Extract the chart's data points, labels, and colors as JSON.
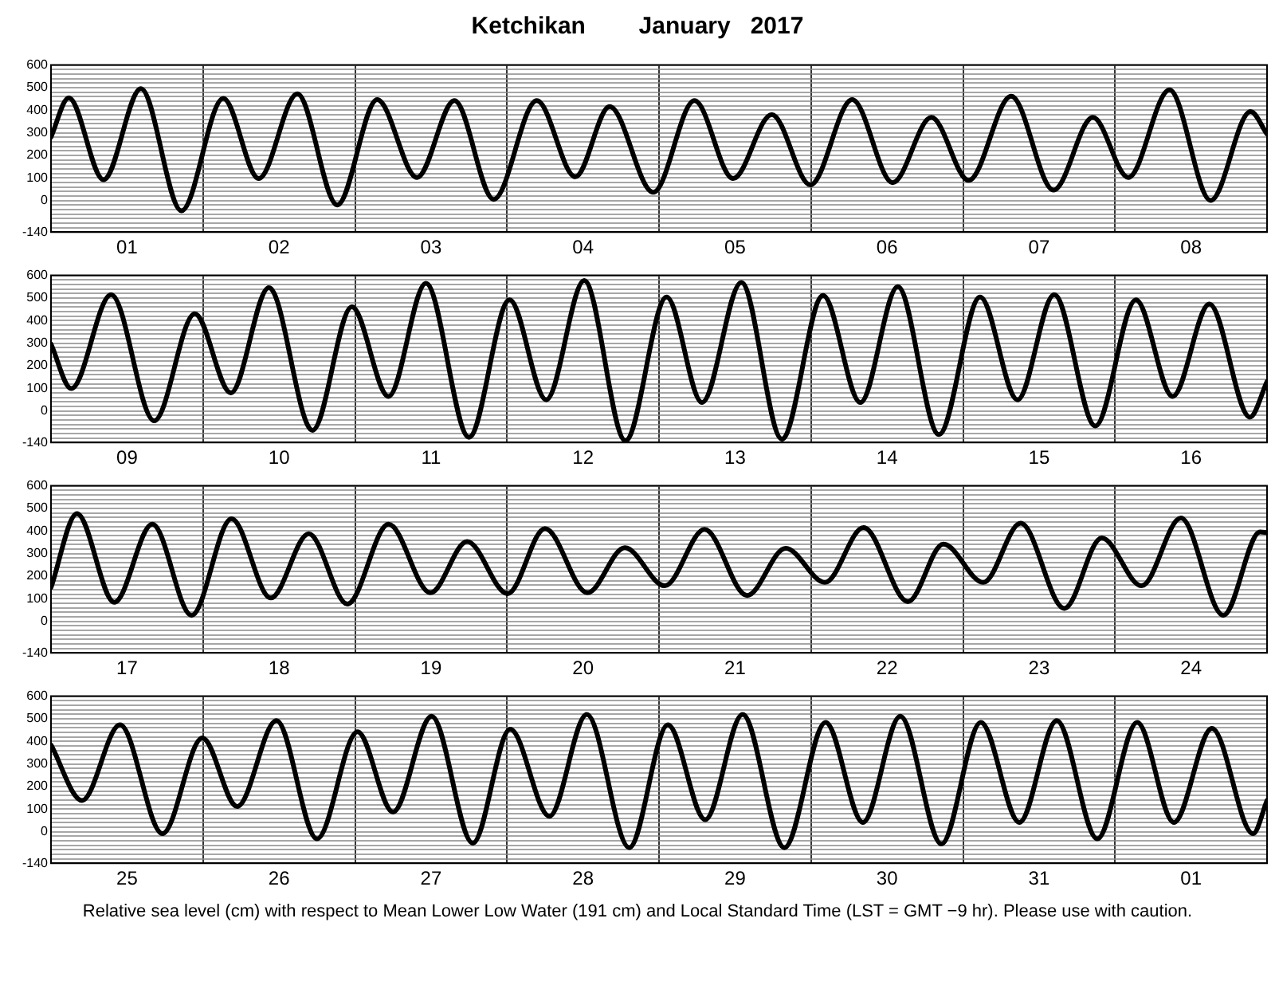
{
  "chart_data": [
    {
      "type": "line",
      "title": "Ketchikan        January   2017",
      "x": [
        "2017-01-01T00:00",
        "2017-01-01T02:48",
        "2017-01-01T08:18",
        "2017-01-01T14:12",
        "2017-01-01T20:36",
        "2017-01-02T03:12",
        "2017-01-02T08:48",
        "2017-01-02T14:54",
        "2017-01-02T21:12",
        "2017-01-03T03:30",
        "2017-01-03T09:48",
        "2017-01-03T15:42",
        "2017-01-03T21:54",
        "2017-01-04T04:42",
        "2017-01-04T10:48",
        "2017-01-04T16:12",
        "2017-01-04T23:06",
        "2017-01-05T05:36",
        "2017-01-05T11:42",
        "2017-01-05T17:48",
        "2017-01-05T23:54",
        "2017-01-06T06:30",
        "2017-01-06T12:54",
        "2017-01-06T19:00",
        "2017-01-07T00:54",
        "2017-01-07T07:36",
        "2017-01-07T14:18",
        "2017-01-07T20:30",
        "2017-01-08T02:06",
        "2017-01-08T08:36",
        "2017-01-08T15:06",
        "2017-01-08T21:24",
        "2017-01-09T00:00"
      ],
      "series": [
        {
          "color": "#000000",
          "values": [
            281,
            455,
            92,
            495,
            -46,
            452,
            97,
            472,
            -20,
            447,
            102,
            442,
            5,
            442,
            105,
            416,
            36,
            442,
            97,
            381,
            69,
            447,
            79,
            368,
            89,
            462,
            46,
            368,
            102,
            490,
            0,
            394,
            294
          ]
        }
      ],
      "xlim": [
        "2017-01-01T00:00",
        "2017-01-09T00:00"
      ],
      "xticks": [
        {
          "value": "2017-01-01T12:00",
          "label": "01"
        },
        {
          "value": "2017-01-02T00:00",
          "label": null
        },
        {
          "value": "2017-01-02T12:00",
          "label": "02"
        },
        {
          "value": "2017-01-03T00:00",
          "label": null
        },
        {
          "value": "2017-01-03T12:00",
          "label": "03"
        },
        {
          "value": "2017-01-04T00:00",
          "label": null
        },
        {
          "value": "2017-01-04T12:00",
          "label": "04"
        },
        {
          "value": "2017-01-05T00:00",
          "label": null
        },
        {
          "value": "2017-01-05T12:00",
          "label": "05"
        },
        {
          "value": "2017-01-06T00:00",
          "label": null
        },
        {
          "value": "2017-01-06T12:00",
          "label": "06"
        },
        {
          "value": "2017-01-07T00:00",
          "label": null
        },
        {
          "value": "2017-01-07T12:00",
          "label": "07"
        },
        {
          "value": "2017-01-08T00:00",
          "label": null
        },
        {
          "value": "2017-01-08T12:00",
          "label": "08"
        }
      ],
      "ylim": [
        -140,
        600
      ],
      "yticks": [
        {
          "value": -140,
          "label": "-140"
        },
        {
          "value": -120,
          "label": null
        },
        {
          "value": -100,
          "label": null
        },
        {
          "value": -80,
          "label": null
        },
        {
          "value": -60,
          "label": null
        },
        {
          "value": -40,
          "label": null
        },
        {
          "value": -20,
          "label": null
        },
        0,
        {
          "value": 20,
          "label": null
        },
        {
          "value": 40,
          "label": null
        },
        {
          "value": 60,
          "label": null
        },
        {
          "value": 80,
          "label": null
        },
        100,
        {
          "value": 120,
          "label": null
        },
        {
          "value": 140,
          "label": null
        },
        {
          "value": 160,
          "label": null
        },
        {
          "value": 180,
          "label": null
        },
        200,
        {
          "value": 220,
          "label": null
        },
        {
          "value": 240,
          "label": null
        },
        {
          "value": 260,
          "label": null
        },
        {
          "value": 280,
          "label": null
        },
        300,
        {
          "value": 320,
          "label": null
        },
        {
          "value": 340,
          "label": null
        },
        {
          "value": 360,
          "label": null
        },
        {
          "value": 380,
          "label": null
        },
        400,
        {
          "value": 420,
          "label": null
        },
        {
          "value": 440,
          "label": null
        },
        {
          "value": 460,
          "label": null
        },
        {
          "value": 480,
          "label": null
        },
        500,
        {
          "value": 520,
          "label": null
        },
        {
          "value": 540,
          "label": null
        },
        {
          "value": 560,
          "label": null
        },
        {
          "value": 580,
          "label": null
        },
        600
      ],
      "grid": true,
      "marker": "none"
    },
    {
      "type": "line",
      "x": [
        "2017-01-09T00:00",
        "2017-01-09T03:12",
        "2017-01-09T09:30",
        "2017-01-09T16:18",
        "2017-01-09T22:42",
        "2017-01-10T04:24",
        "2017-01-10T10:24",
        "2017-01-10T17:18",
        "2017-01-10T23:30",
        "2017-01-11T05:18",
        "2017-01-11T11:12",
        "2017-01-11T18:00",
        "2017-01-12T00:24",
        "2017-01-12T06:12",
        "2017-01-12T12:12",
        "2017-01-12T18:42",
        "2017-01-13T01:12",
        "2017-01-13T06:48",
        "2017-01-13T13:00",
        "2017-01-13T19:24",
        "2017-01-14T01:54",
        "2017-01-14T07:48",
        "2017-01-14T13:42",
        "2017-01-14T20:12",
        "2017-01-15T02:42",
        "2017-01-15T08:36",
        "2017-01-15T14:24",
        "2017-01-15T20:54",
        "2017-01-16T03:18",
        "2017-01-16T09:06",
        "2017-01-16T14:54",
        "2017-01-16T21:18",
        "2017-01-17T00:00"
      ],
      "series": [
        {
          "color": "#000000",
          "values": [
            296,
            99,
            515,
            -44,
            430,
            80,
            546,
            -86,
            461,
            64,
            565,
            -117,
            492,
            49,
            577,
            -132,
            504,
            37,
            569,
            -125,
            511,
            37,
            550,
            -105,
            504,
            49,
            515,
            -67,
            492,
            64,
            473,
            -28,
            130
          ]
        }
      ],
      "xlim": [
        "2017-01-09T00:00",
        "2017-01-17T00:00"
      ],
      "xticks": [
        {
          "value": "2017-01-09T12:00",
          "label": "09"
        },
        {
          "value": "2017-01-10T00:00",
          "label": null
        },
        {
          "value": "2017-01-10T12:00",
          "label": "10"
        },
        {
          "value": "2017-01-11T00:00",
          "label": null
        },
        {
          "value": "2017-01-11T12:00",
          "label": "11"
        },
        {
          "value": "2017-01-12T00:00",
          "label": null
        },
        {
          "value": "2017-01-12T12:00",
          "label": "12"
        },
        {
          "value": "2017-01-13T00:00",
          "label": null
        },
        {
          "value": "2017-01-13T12:00",
          "label": "13"
        },
        {
          "value": "2017-01-14T00:00",
          "label": null
        },
        {
          "value": "2017-01-14T12:00",
          "label": "14"
        },
        {
          "value": "2017-01-15T00:00",
          "label": null
        },
        {
          "value": "2017-01-15T12:00",
          "label": "15"
        },
        {
          "value": "2017-01-16T00:00",
          "label": null
        },
        {
          "value": "2017-01-16T12:00",
          "label": "16"
        }
      ],
      "ylim": [
        -140,
        600
      ],
      "yticks": [
        {
          "value": -140,
          "label": "-140"
        },
        {
          "value": -120,
          "label": null
        },
        {
          "value": -100,
          "label": null
        },
        {
          "value": -80,
          "label": null
        },
        {
          "value": -60,
          "label": null
        },
        {
          "value": -40,
          "label": null
        },
        {
          "value": -20,
          "label": null
        },
        0,
        {
          "value": 20,
          "label": null
        },
        {
          "value": 40,
          "label": null
        },
        {
          "value": 60,
          "label": null
        },
        {
          "value": 80,
          "label": null
        },
        100,
        {
          "value": 120,
          "label": null
        },
        {
          "value": 140,
          "label": null
        },
        {
          "value": 160,
          "label": null
        },
        {
          "value": 180,
          "label": null
        },
        200,
        {
          "value": 220,
          "label": null
        },
        {
          "value": 240,
          "label": null
        },
        {
          "value": 260,
          "label": null
        },
        {
          "value": 280,
          "label": null
        },
        300,
        {
          "value": 320,
          "label": null
        },
        {
          "value": 340,
          "label": null
        },
        {
          "value": 360,
          "label": null
        },
        {
          "value": 380,
          "label": null
        },
        400,
        {
          "value": 420,
          "label": null
        },
        {
          "value": 440,
          "label": null
        },
        {
          "value": 460,
          "label": null
        },
        {
          "value": 480,
          "label": null
        },
        500,
        {
          "value": 520,
          "label": null
        },
        {
          "value": 540,
          "label": null
        },
        {
          "value": 560,
          "label": null
        },
        {
          "value": 580,
          "label": null
        },
        600
      ],
      "grid": true,
      "marker": "none"
    },
    {
      "type": "line",
      "x": [
        "2017-01-17T00:00",
        "2017-01-17T04:06",
        "2017-01-17T10:00",
        "2017-01-17T16:00",
        "2017-01-17T22:12",
        "2017-01-18T04:30",
        "2017-01-18T10:42",
        "2017-01-18T16:42",
        "2017-01-18T22:48",
        "2017-01-19T05:18",
        "2017-01-19T11:54",
        "2017-01-19T17:42",
        "2017-01-20T00:06",
        "2017-01-20T06:00",
        "2017-01-20T12:42",
        "2017-01-20T18:36",
        "2017-01-21T00:54",
        "2017-01-21T07:12",
        "2017-01-21T13:54",
        "2017-01-21T20:00",
        "2017-01-22T02:12",
        "2017-01-22T08:18",
        "2017-01-22T15:18",
        "2017-01-22T20:54",
        "2017-01-23T03:12",
        "2017-01-23T09:06",
        "2017-01-23T16:00",
        "2017-01-23T21:54",
        "2017-01-24T04:12",
        "2017-01-24T10:24",
        "2017-01-24T17:06",
        "2017-01-24T22:54",
        "2017-01-25T00:00"
      ],
      "series": [
        {
          "color": "#000000",
          "values": [
            149,
            477,
            84,
            430,
            26,
            454,
            103,
            388,
            76,
            430,
            126,
            353,
            122,
            411,
            126,
            326,
            157,
            407,
            114,
            323,
            172,
            415,
            87,
            342,
            172,
            434,
            57,
            369,
            157,
            457,
            26,
            396,
            392
          ]
        }
      ],
      "xlim": [
        "2017-01-17T00:00",
        "2017-01-25T00:00"
      ],
      "xticks": [
        {
          "value": "2017-01-17T12:00",
          "label": "17"
        },
        {
          "value": "2017-01-18T00:00",
          "label": null
        },
        {
          "value": "2017-01-18T12:00",
          "label": "18"
        },
        {
          "value": "2017-01-19T00:00",
          "label": null
        },
        {
          "value": "2017-01-19T12:00",
          "label": "19"
        },
        {
          "value": "2017-01-20T00:00",
          "label": null
        },
        {
          "value": "2017-01-20T12:00",
          "label": "20"
        },
        {
          "value": "2017-01-21T00:00",
          "label": null
        },
        {
          "value": "2017-01-21T12:00",
          "label": "21"
        },
        {
          "value": "2017-01-22T00:00",
          "label": null
        },
        {
          "value": "2017-01-22T12:00",
          "label": "22"
        },
        {
          "value": "2017-01-23T00:00",
          "label": null
        },
        {
          "value": "2017-01-23T12:00",
          "label": "23"
        },
        {
          "value": "2017-01-24T00:00",
          "label": null
        },
        {
          "value": "2017-01-24T12:00",
          "label": "24"
        }
      ],
      "ylim": [
        -140,
        600
      ],
      "yticks": [
        {
          "value": -140,
          "label": "-140"
        },
        {
          "value": -120,
          "label": null
        },
        {
          "value": -100,
          "label": null
        },
        {
          "value": -80,
          "label": null
        },
        {
          "value": -60,
          "label": null
        },
        {
          "value": -40,
          "label": null
        },
        {
          "value": -20,
          "label": null
        },
        0,
        {
          "value": 20,
          "label": null
        },
        {
          "value": 40,
          "label": null
        },
        {
          "value": 60,
          "label": null
        },
        {
          "value": 80,
          "label": null
        },
        100,
        {
          "value": 120,
          "label": null
        },
        {
          "value": 140,
          "label": null
        },
        {
          "value": 160,
          "label": null
        },
        {
          "value": 180,
          "label": null
        },
        200,
        {
          "value": 220,
          "label": null
        },
        {
          "value": 240,
          "label": null
        },
        {
          "value": 260,
          "label": null
        },
        {
          "value": 280,
          "label": null
        },
        300,
        {
          "value": 320,
          "label": null
        },
        {
          "value": 340,
          "label": null
        },
        {
          "value": 360,
          "label": null
        },
        {
          "value": 380,
          "label": null
        },
        400,
        {
          "value": 420,
          "label": null
        },
        {
          "value": 440,
          "label": null
        },
        {
          "value": 460,
          "label": null
        },
        {
          "value": 480,
          "label": null
        },
        500,
        {
          "value": 520,
          "label": null
        },
        {
          "value": 540,
          "label": null
        },
        {
          "value": 560,
          "label": null
        },
        {
          "value": 580,
          "label": null
        },
        600
      ],
      "grid": true,
      "marker": "none"
    },
    {
      "type": "line",
      "x": [
        "2017-01-25T00:00",
        "2017-01-25T04:54",
        "2017-01-25T10:54",
        "2017-01-25T17:36",
        "2017-01-25T23:54",
        "2017-01-26T05:24",
        "2017-01-26T11:36",
        "2017-01-26T18:00",
        "2017-01-27T00:24",
        "2017-01-27T06:00",
        "2017-01-27T12:06",
        "2017-01-27T18:36",
        "2017-01-28T00:30",
        "2017-01-28T06:42",
        "2017-01-28T12:36",
        "2017-01-28T19:18",
        "2017-01-29T01:24",
        "2017-01-29T07:18",
        "2017-01-29T13:12",
        "2017-01-29T19:48",
        "2017-01-30T02:18",
        "2017-01-30T08:12",
        "2017-01-30T14:06",
        "2017-01-30T20:36",
        "2017-01-31T02:48",
        "2017-01-31T08:54",
        "2017-01-31T14:48",
        "2017-01-31T21:12",
        "2017-02-01T03:30",
        "2017-02-01T09:18",
        "2017-02-01T15:18",
        "2017-02-01T21:48",
        "2017-02-02T00:00"
      ],
      "series": [
        {
          "color": "#000000",
          "values": [
            384,
            138,
            473,
            -9,
            415,
            111,
            492,
            -32,
            442,
            87,
            511,
            -51,
            454,
            68,
            519,
            -71,
            473,
            53,
            519,
            -71,
            484,
            41,
            511,
            -55,
            484,
            41,
            492,
            -32,
            484,
            41,
            457,
            -9,
            138
          ]
        }
      ],
      "xlim": [
        "2017-01-25T00:00",
        "2017-02-02T00:00"
      ],
      "xticks": [
        {
          "value": "2017-01-25T12:00",
          "label": "25"
        },
        {
          "value": "2017-01-26T00:00",
          "label": null
        },
        {
          "value": "2017-01-26T12:00",
          "label": "26"
        },
        {
          "value": "2017-01-27T00:00",
          "label": null
        },
        {
          "value": "2017-01-27T12:00",
          "label": "27"
        },
        {
          "value": "2017-01-28T00:00",
          "label": null
        },
        {
          "value": "2017-01-28T12:00",
          "label": "28"
        },
        {
          "value": "2017-01-29T00:00",
          "label": null
        },
        {
          "value": "2017-01-29T12:00",
          "label": "29"
        },
        {
          "value": "2017-01-30T00:00",
          "label": null
        },
        {
          "value": "2017-01-30T12:00",
          "label": "30"
        },
        {
          "value": "2017-01-31T00:00",
          "label": null
        },
        {
          "value": "2017-01-31T12:00",
          "label": "31"
        },
        {
          "value": "2017-02-01T00:00",
          "label": null
        },
        {
          "value": "2017-02-01T12:00",
          "label": "01"
        }
      ],
      "ylim": [
        -140,
        600
      ],
      "yticks": [
        {
          "value": -140,
          "label": "-140"
        },
        {
          "value": -120,
          "label": null
        },
        {
          "value": -100,
          "label": null
        },
        {
          "value": -80,
          "label": null
        },
        {
          "value": -60,
          "label": null
        },
        {
          "value": -40,
          "label": null
        },
        {
          "value": -20,
          "label": null
        },
        0,
        {
          "value": 20,
          "label": null
        },
        {
          "value": 40,
          "label": null
        },
        {
          "value": 60,
          "label": null
        },
        {
          "value": 80,
          "label": null
        },
        100,
        {
          "value": 120,
          "label": null
        },
        {
          "value": 140,
          "label": null
        },
        {
          "value": 160,
          "label": null
        },
        {
          "value": 180,
          "label": null
        },
        200,
        {
          "value": 220,
          "label": null
        },
        {
          "value": 240,
          "label": null
        },
        {
          "value": 260,
          "label": null
        },
        {
          "value": 280,
          "label": null
        },
        300,
        {
          "value": 320,
          "label": null
        },
        {
          "value": 340,
          "label": null
        },
        {
          "value": 360,
          "label": null
        },
        {
          "value": 380,
          "label": null
        },
        400,
        {
          "value": 420,
          "label": null
        },
        {
          "value": 440,
          "label": null
        },
        {
          "value": 460,
          "label": null
        },
        {
          "value": 480,
          "label": null
        },
        500,
        {
          "value": 520,
          "label": null
        },
        {
          "value": 540,
          "label": null
        },
        {
          "value": 560,
          "label": null
        },
        {
          "value": 580,
          "label": null
        },
        600
      ],
      "grid": true,
      "marker": "none",
      "annotations": [
        "Relative sea level (cm) with respect to Mean Lower Low Water (191 cm) and Local Standard Time (LST = GMT −9 hr). Please use with caution."
      ]
    }
  ]
}
